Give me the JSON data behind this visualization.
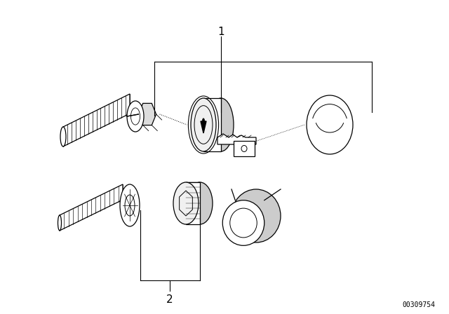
{
  "background_color": "#ffffff",
  "line_color": "#000000",
  "label_1_text": "1",
  "label_2_text": "2",
  "part_number_text": "00309754",
  "fig_width": 6.4,
  "fig_height": 4.48,
  "dpi": 100
}
